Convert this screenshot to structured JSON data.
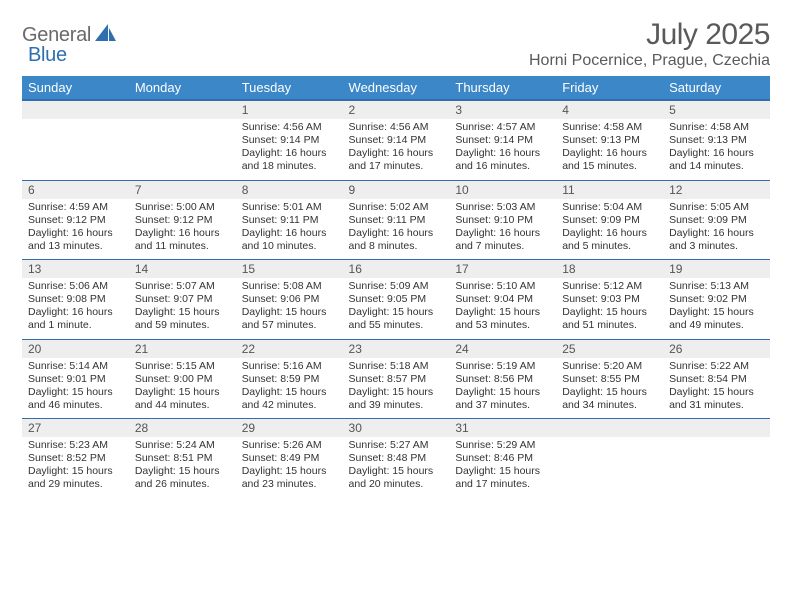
{
  "brand": {
    "word1": "General",
    "word2": "Blue",
    "gray": "#6a6a6a",
    "blue": "#2f6fb0"
  },
  "title": "July 2025",
  "location": "Horni Pocernice, Prague, Czechia",
  "colors": {
    "header_bg": "#3b87c8",
    "header_border": "#2f6fb0",
    "daynum_bg": "#eeeeee",
    "text": "#333333",
    "title_text": "#5a5a5a"
  },
  "day_names": [
    "Sunday",
    "Monday",
    "Tuesday",
    "Wednesday",
    "Thursday",
    "Friday",
    "Saturday"
  ],
  "weeks": [
    [
      null,
      null,
      {
        "n": "1",
        "sr": "Sunrise: 4:56 AM",
        "ss": "Sunset: 9:14 PM",
        "d1": "Daylight: 16 hours",
        "d2": "and 18 minutes."
      },
      {
        "n": "2",
        "sr": "Sunrise: 4:56 AM",
        "ss": "Sunset: 9:14 PM",
        "d1": "Daylight: 16 hours",
        "d2": "and 17 minutes."
      },
      {
        "n": "3",
        "sr": "Sunrise: 4:57 AM",
        "ss": "Sunset: 9:14 PM",
        "d1": "Daylight: 16 hours",
        "d2": "and 16 minutes."
      },
      {
        "n": "4",
        "sr": "Sunrise: 4:58 AM",
        "ss": "Sunset: 9:13 PM",
        "d1": "Daylight: 16 hours",
        "d2": "and 15 minutes."
      },
      {
        "n": "5",
        "sr": "Sunrise: 4:58 AM",
        "ss": "Sunset: 9:13 PM",
        "d1": "Daylight: 16 hours",
        "d2": "and 14 minutes."
      }
    ],
    [
      {
        "n": "6",
        "sr": "Sunrise: 4:59 AM",
        "ss": "Sunset: 9:12 PM",
        "d1": "Daylight: 16 hours",
        "d2": "and 13 minutes."
      },
      {
        "n": "7",
        "sr": "Sunrise: 5:00 AM",
        "ss": "Sunset: 9:12 PM",
        "d1": "Daylight: 16 hours",
        "d2": "and 11 minutes."
      },
      {
        "n": "8",
        "sr": "Sunrise: 5:01 AM",
        "ss": "Sunset: 9:11 PM",
        "d1": "Daylight: 16 hours",
        "d2": "and 10 minutes."
      },
      {
        "n": "9",
        "sr": "Sunrise: 5:02 AM",
        "ss": "Sunset: 9:11 PM",
        "d1": "Daylight: 16 hours",
        "d2": "and 8 minutes."
      },
      {
        "n": "10",
        "sr": "Sunrise: 5:03 AM",
        "ss": "Sunset: 9:10 PM",
        "d1": "Daylight: 16 hours",
        "d2": "and 7 minutes."
      },
      {
        "n": "11",
        "sr": "Sunrise: 5:04 AM",
        "ss": "Sunset: 9:09 PM",
        "d1": "Daylight: 16 hours",
        "d2": "and 5 minutes."
      },
      {
        "n": "12",
        "sr": "Sunrise: 5:05 AM",
        "ss": "Sunset: 9:09 PM",
        "d1": "Daylight: 16 hours",
        "d2": "and 3 minutes."
      }
    ],
    [
      {
        "n": "13",
        "sr": "Sunrise: 5:06 AM",
        "ss": "Sunset: 9:08 PM",
        "d1": "Daylight: 16 hours",
        "d2": "and 1 minute."
      },
      {
        "n": "14",
        "sr": "Sunrise: 5:07 AM",
        "ss": "Sunset: 9:07 PM",
        "d1": "Daylight: 15 hours",
        "d2": "and 59 minutes."
      },
      {
        "n": "15",
        "sr": "Sunrise: 5:08 AM",
        "ss": "Sunset: 9:06 PM",
        "d1": "Daylight: 15 hours",
        "d2": "and 57 minutes."
      },
      {
        "n": "16",
        "sr": "Sunrise: 5:09 AM",
        "ss": "Sunset: 9:05 PM",
        "d1": "Daylight: 15 hours",
        "d2": "and 55 minutes."
      },
      {
        "n": "17",
        "sr": "Sunrise: 5:10 AM",
        "ss": "Sunset: 9:04 PM",
        "d1": "Daylight: 15 hours",
        "d2": "and 53 minutes."
      },
      {
        "n": "18",
        "sr": "Sunrise: 5:12 AM",
        "ss": "Sunset: 9:03 PM",
        "d1": "Daylight: 15 hours",
        "d2": "and 51 minutes."
      },
      {
        "n": "19",
        "sr": "Sunrise: 5:13 AM",
        "ss": "Sunset: 9:02 PM",
        "d1": "Daylight: 15 hours",
        "d2": "and 49 minutes."
      }
    ],
    [
      {
        "n": "20",
        "sr": "Sunrise: 5:14 AM",
        "ss": "Sunset: 9:01 PM",
        "d1": "Daylight: 15 hours",
        "d2": "and 46 minutes."
      },
      {
        "n": "21",
        "sr": "Sunrise: 5:15 AM",
        "ss": "Sunset: 9:00 PM",
        "d1": "Daylight: 15 hours",
        "d2": "and 44 minutes."
      },
      {
        "n": "22",
        "sr": "Sunrise: 5:16 AM",
        "ss": "Sunset: 8:59 PM",
        "d1": "Daylight: 15 hours",
        "d2": "and 42 minutes."
      },
      {
        "n": "23",
        "sr": "Sunrise: 5:18 AM",
        "ss": "Sunset: 8:57 PM",
        "d1": "Daylight: 15 hours",
        "d2": "and 39 minutes."
      },
      {
        "n": "24",
        "sr": "Sunrise: 5:19 AM",
        "ss": "Sunset: 8:56 PM",
        "d1": "Daylight: 15 hours",
        "d2": "and 37 minutes."
      },
      {
        "n": "25",
        "sr": "Sunrise: 5:20 AM",
        "ss": "Sunset: 8:55 PM",
        "d1": "Daylight: 15 hours",
        "d2": "and 34 minutes."
      },
      {
        "n": "26",
        "sr": "Sunrise: 5:22 AM",
        "ss": "Sunset: 8:54 PM",
        "d1": "Daylight: 15 hours",
        "d2": "and 31 minutes."
      }
    ],
    [
      {
        "n": "27",
        "sr": "Sunrise: 5:23 AM",
        "ss": "Sunset: 8:52 PM",
        "d1": "Daylight: 15 hours",
        "d2": "and 29 minutes."
      },
      {
        "n": "28",
        "sr": "Sunrise: 5:24 AM",
        "ss": "Sunset: 8:51 PM",
        "d1": "Daylight: 15 hours",
        "d2": "and 26 minutes."
      },
      {
        "n": "29",
        "sr": "Sunrise: 5:26 AM",
        "ss": "Sunset: 8:49 PM",
        "d1": "Daylight: 15 hours",
        "d2": "and 23 minutes."
      },
      {
        "n": "30",
        "sr": "Sunrise: 5:27 AM",
        "ss": "Sunset: 8:48 PM",
        "d1": "Daylight: 15 hours",
        "d2": "and 20 minutes."
      },
      {
        "n": "31",
        "sr": "Sunrise: 5:29 AM",
        "ss": "Sunset: 8:46 PM",
        "d1": "Daylight: 15 hours",
        "d2": "and 17 minutes."
      },
      null,
      null
    ]
  ]
}
